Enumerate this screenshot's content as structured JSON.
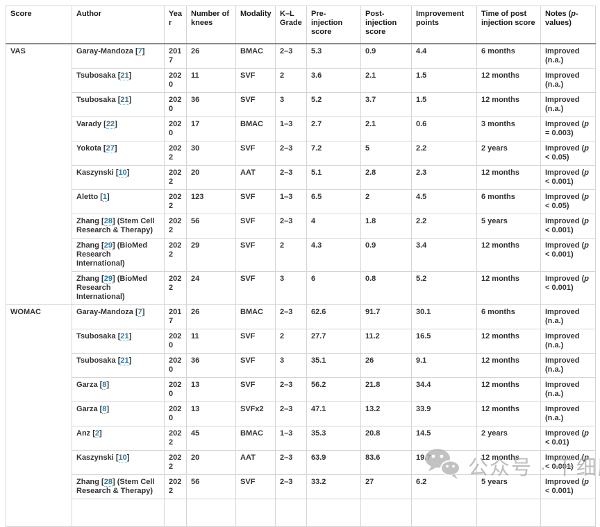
{
  "table": {
    "columns": [
      {
        "pre": "Score",
        "italic": "",
        "post": ""
      },
      {
        "pre": "Author",
        "italic": "",
        "post": ""
      },
      {
        "pre": "Year",
        "italic": "",
        "post": ""
      },
      {
        "pre": "Number of\nknees",
        "italic": "",
        "post": ""
      },
      {
        "pre": "Modality",
        "italic": "",
        "post": ""
      },
      {
        "pre": "K–L\nGrade",
        "italic": "",
        "post": ""
      },
      {
        "pre": "Pre-\ninjection\nscore",
        "italic": "",
        "post": ""
      },
      {
        "pre": "Post-\ninjection\nscore",
        "italic": "",
        "post": ""
      },
      {
        "pre": "Improvement\npoints",
        "italic": "",
        "post": ""
      },
      {
        "pre": "Time of post\ninjection score",
        "italic": "",
        "post": ""
      },
      {
        "pre": "Notes (",
        "italic": "p",
        "post": "-\nvalues)"
      }
    ],
    "sections": [
      {
        "score": "VAS",
        "rows": [
          {
            "author": "Garay-Mandoza",
            "ref": "7",
            "suffix": "",
            "year": "2017",
            "knees": "26",
            "modality": "BMAC",
            "kl": "2–3",
            "pre": "5.3",
            "post": "0.9",
            "improvement": "4.4",
            "time": "6 months",
            "note": {
              "pre": "Improved ",
              "p": "",
              "post": "(n.a.)"
            }
          },
          {
            "author": "Tsubosaka",
            "ref": "21",
            "suffix": "",
            "year": "2020",
            "knees": "11",
            "modality": "SVF",
            "kl": "2",
            "pre": "3.6",
            "post": "2.1",
            "improvement": "1.5",
            "time": "12 months",
            "note": {
              "pre": "Improved ",
              "p": "",
              "post": "(n.a.)"
            }
          },
          {
            "author": "Tsubosaka",
            "ref": "21",
            "suffix": "",
            "year": "2020",
            "knees": "36",
            "modality": "SVF",
            "kl": "3",
            "pre": "5.2",
            "post": "3.7",
            "improvement": "1.5",
            "time": "12 months",
            "note": {
              "pre": "Improved ",
              "p": "",
              "post": "(n.a.)"
            }
          },
          {
            "author": "Varady",
            "ref": "22",
            "suffix": "",
            "year": "2020",
            "knees": "17",
            "modality": "BMAC",
            "kl": "1–3",
            "pre": "2.7",
            "post": "2.1",
            "improvement": "0.6",
            "time": "3 months",
            "note": {
              "pre": "Improved (",
              "p": "p",
              "post": " = 0.003)"
            }
          },
          {
            "author": "Yokota",
            "ref": "27",
            "suffix": "",
            "year": "2022",
            "knees": "30",
            "modality": "SVF",
            "kl": "2–3",
            "pre": "7.2",
            "post": "5",
            "improvement": "2.2",
            "time": "2 years",
            "note": {
              "pre": "Improved (",
              "p": "p",
              "post": " < 0.05)"
            }
          },
          {
            "author": "Kaszynski",
            "ref": "10",
            "suffix": "",
            "year": "2022",
            "knees": "20",
            "modality": "AAT",
            "kl": "2–3",
            "pre": "5.1",
            "post": "2.8",
            "improvement": "2.3",
            "time": "12 months",
            "note": {
              "pre": "Improved (",
              "p": "p",
              "post": " < 0.001)"
            }
          },
          {
            "author": "Aletto",
            "ref": "1",
            "suffix": "",
            "year": "2022",
            "knees": "123",
            "modality": "SVF",
            "kl": "1–3",
            "pre": "6.5",
            "post": "2",
            "improvement": "4.5",
            "time": "6 months",
            "note": {
              "pre": "Improved (",
              "p": "p",
              "post": " < 0.05)"
            }
          },
          {
            "author": "Zhang",
            "ref": "28",
            "suffix": " (Stem Cell\nResearch & Therapy)",
            "year": "2022",
            "knees": "56",
            "modality": "SVF",
            "kl": "2–3",
            "pre": "4",
            "post": "1.8",
            "improvement": "2.2",
            "time": "5 years",
            "note": {
              "pre": "Improved (",
              "p": "p",
              "post": " < 0.001)"
            }
          },
          {
            "author": "Zhang",
            "ref": "29",
            "suffix": " (BioMed\nResearch\nInternational)",
            "year": "2022",
            "knees": "29",
            "modality": "SVF",
            "kl": "2",
            "pre": "4.3",
            "post": "0.9",
            "improvement": "3.4",
            "time": "12 months",
            "note": {
              "pre": "Improved (",
              "p": "p",
              "post": " < 0.001)"
            }
          },
          {
            "author": "Zhang",
            "ref": "29",
            "suffix": " (BioMed\nResearch\nInternational)",
            "year": "2022",
            "knees": "24",
            "modality": "SVF",
            "kl": "3",
            "pre": "6",
            "post": "0.8",
            "improvement": "5.2",
            "time": "12 months",
            "note": {
              "pre": "Improved (",
              "p": "p",
              "post": " < 0.001)"
            }
          }
        ]
      },
      {
        "score": "WOMAC",
        "partial_row": true,
        "rows": [
          {
            "author": "Garay-Mandoza",
            "ref": "7",
            "suffix": "",
            "year": "2017",
            "knees": "26",
            "modality": "BMAC",
            "kl": "2–3",
            "pre": "62.6",
            "post": "91.7",
            "improvement": "30.1",
            "time": "6 months",
            "note": {
              "pre": "Improved ",
              "p": "",
              "post": "(n.a.)"
            }
          },
          {
            "author": "Tsubosaka",
            "ref": "21",
            "suffix": "",
            "year": "2020",
            "knees": "11",
            "modality": "SVF",
            "kl": "2",
            "pre": "27.7",
            "post": "11.2",
            "improvement": "16.5",
            "time": "12 months",
            "note": {
              "pre": "Improved ",
              "p": "",
              "post": "(n.a.)"
            }
          },
          {
            "author": "Tsubosaka",
            "ref": "21",
            "suffix": "",
            "year": "2020",
            "knees": "36",
            "modality": "SVF",
            "kl": "3",
            "pre": "35.1",
            "post": "26",
            "improvement": "9.1",
            "time": "12 months",
            "note": {
              "pre": "Improved ",
              "p": "",
              "post": "(n.a.)"
            }
          },
          {
            "author": "Garza",
            "ref": "8",
            "suffix": "",
            "year": "2020",
            "knees": "13",
            "modality": "SVF",
            "kl": "2–3",
            "pre": "56.2",
            "post": "21.8",
            "improvement": "34.4",
            "time": "12 months",
            "note": {
              "pre": "Improved ",
              "p": "",
              "post": "(n.a.)"
            }
          },
          {
            "author": "Garza",
            "ref": "8",
            "suffix": "",
            "year": "2020",
            "knees": "13",
            "modality": "SVFx2",
            "kl": "2–3",
            "pre": "47.1",
            "post": "13.2",
            "improvement": "33.9",
            "time": "12 months",
            "note": {
              "pre": "Improved ",
              "p": "",
              "post": "(n.a.)"
            }
          },
          {
            "author": "Anz",
            "ref": "2",
            "suffix": "",
            "year": "2022",
            "knees": "45",
            "modality": "BMAC",
            "kl": "1–3",
            "pre": "35.3",
            "post": "20.8",
            "improvement": "14.5",
            "time": "2 years",
            "note": {
              "pre": "Improved (",
              "p": "p",
              "post": " < 0.01)"
            }
          },
          {
            "author": "Kaszynski",
            "ref": "10",
            "suffix": "",
            "year": "2022",
            "knees": "20",
            "modality": "AAT",
            "kl": "2–3",
            "pre": "63.9",
            "post": "83.6",
            "improvement": "19.7",
            "time": "12 months",
            "note": {
              "pre": "Improved (",
              "p": "p",
              "post": " < 0.001)"
            }
          },
          {
            "author": "Zhang",
            "ref": "28",
            "suffix": " (Stem Cell\nResearch & Therapy)",
            "year": "2022",
            "knees": "56",
            "modality": "SVF",
            "kl": "2–3",
            "pre": "33.2",
            "post": "27",
            "improvement": "6.2",
            "time": "5 years",
            "note": {
              "pre": "Improved (",
              "p": "p",
              "post": " < 0.001)"
            }
          }
        ]
      }
    ]
  },
  "watermark": {
    "text": "公众号 · 干细胞"
  }
}
